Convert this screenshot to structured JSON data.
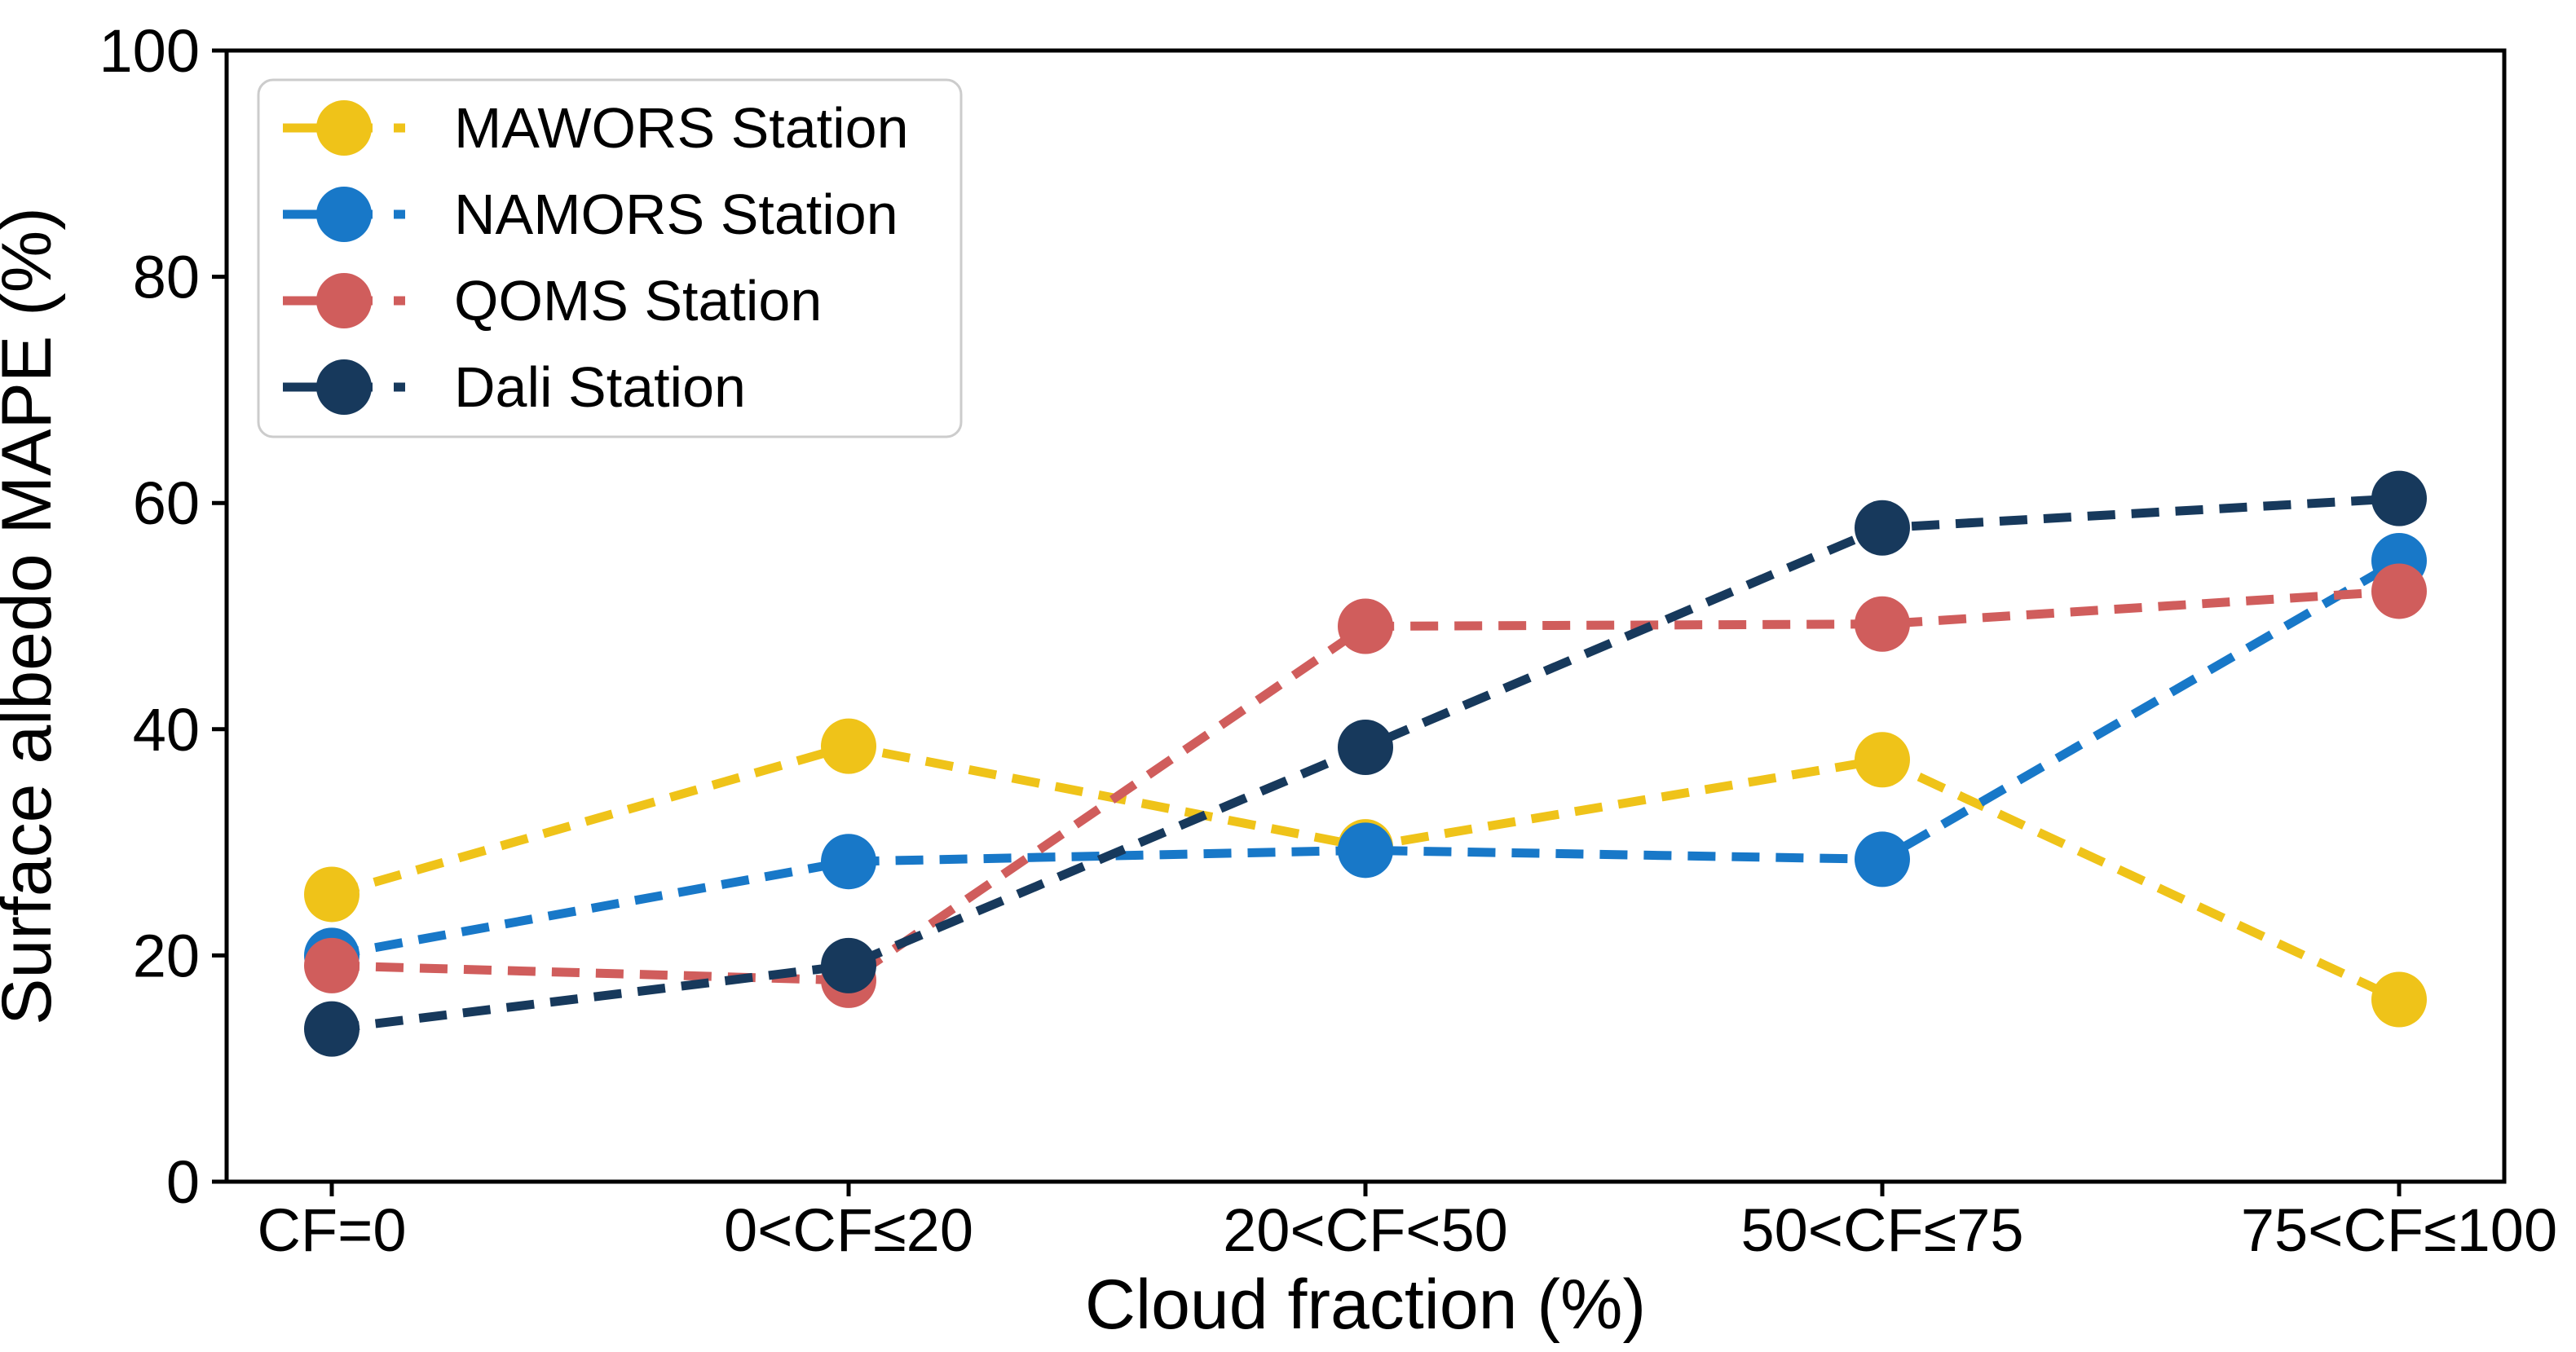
{
  "figure": {
    "xlabel": "Cloud fraction (%)",
    "ylabel": "Surface albedo MAPE (%)"
  },
  "chart_data": {
    "type": "line",
    "line_style": "dashed",
    "marker": "circle",
    "grid": false,
    "legend_position": "upper left",
    "title": "",
    "xlabel": "Cloud fraction (%)",
    "ylabel": "Surface albedo MAPE (%)",
    "categories": [
      "CF=0",
      "0<CF≤20",
      "20<CF<50",
      "50<CF≤75",
      "75<CF≤100"
    ],
    "yticks": [
      0,
      20,
      40,
      60,
      80,
      100
    ],
    "ylim": [
      0,
      100
    ],
    "series": [
      {
        "name": "MAWORS Station",
        "color": "#EFC319",
        "values": [
          25.4,
          38.5,
          29.6,
          37.3,
          16.1
        ]
      },
      {
        "name": "NAMORS Station",
        "color": "#1878C8",
        "values": [
          20.0,
          28.3,
          29.3,
          28.5,
          54.9
        ]
      },
      {
        "name": "QOMS Station",
        "color": "#D05D5C",
        "values": [
          19.1,
          17.8,
          49.1,
          49.3,
          52.2
        ]
      },
      {
        "name": "Dali Station",
        "color": "#17395C",
        "values": [
          13.5,
          19.1,
          38.4,
          57.8,
          60.4
        ]
      }
    ]
  }
}
